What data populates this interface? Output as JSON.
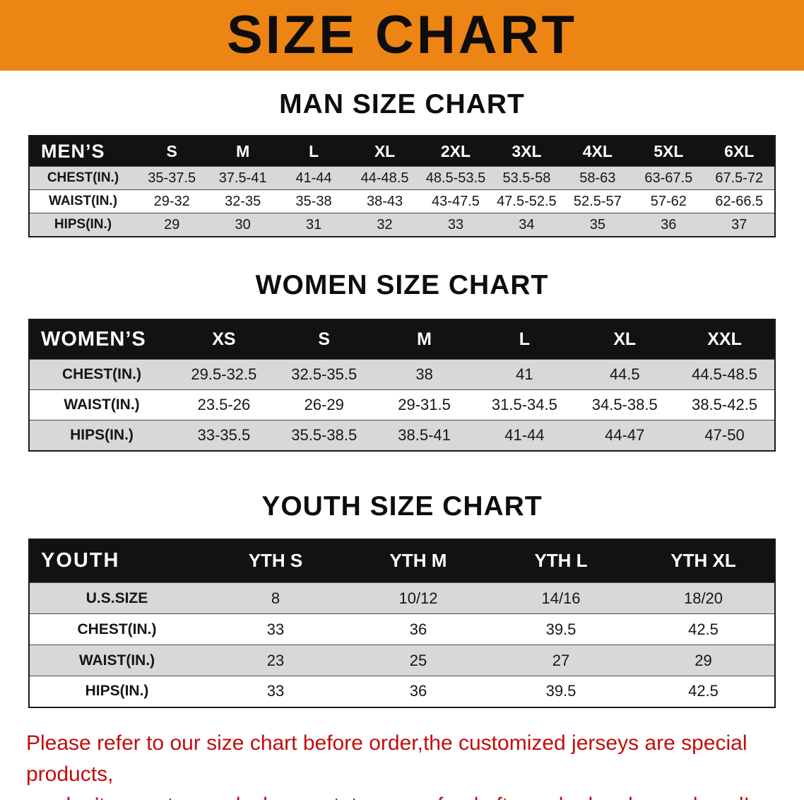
{
  "banner": {
    "title": "SIZE CHART"
  },
  "colors": {
    "banner_bg": "#ED8515",
    "header_bg": "#121212",
    "row_shade": "#D8D8D8",
    "notice_text": "#C20D0D"
  },
  "sections": [
    {
      "id": "men",
      "heading": "MAN SIZE CHART",
      "table": {
        "header_label": "MEN’S",
        "columns": [
          "S",
          "M",
          "L",
          "XL",
          "2XL",
          "3XL",
          "4XL",
          "5XL",
          "6XL"
        ],
        "rows": [
          {
            "label": "CHEST(IN.)",
            "values": [
              "35-37.5",
              "37.5-41",
              "41-44",
              "44-48.5",
              "48.5-53.5",
              "53.5-58",
              "58-63",
              "63-67.5",
              "67.5-72"
            ]
          },
          {
            "label": "WAIST(IN.)",
            "values": [
              "29-32",
              "32-35",
              "35-38",
              "38-43",
              "43-47.5",
              "47.5-52.5",
              "52.5-57",
              "57-62",
              "62-66.5"
            ]
          },
          {
            "label": "HIPS(IN.)",
            "values": [
              "29",
              "30",
              "31",
              "32",
              "33",
              "34",
              "35",
              "36",
              "37"
            ]
          }
        ]
      }
    },
    {
      "id": "women",
      "heading": "WOMEN SIZE CHART",
      "table": {
        "header_label": "WOMEN’S",
        "columns": [
          "XS",
          "S",
          "M",
          "L",
          "XL",
          "XXL"
        ],
        "rows": [
          {
            "label": "CHEST(IN.)",
            "values": [
              "29.5-32.5",
              "32.5-35.5",
              "38",
              "41",
              "44.5",
              "44.5-48.5"
            ]
          },
          {
            "label": "WAIST(IN.)",
            "values": [
              "23.5-26",
              "26-29",
              "29-31.5",
              "31.5-34.5",
              "34.5-38.5",
              "38.5-42.5"
            ]
          },
          {
            "label": "HIPS(IN.)",
            "values": [
              "33-35.5",
              "35.5-38.5",
              "38.5-41",
              "41-44",
              "44-47",
              "47-50"
            ]
          }
        ]
      }
    },
    {
      "id": "youth",
      "heading": "YOUTH SIZE CHART",
      "table": {
        "header_label": "YOUTH",
        "columns": [
          "YTH S",
          "YTH M",
          "YTH L",
          "YTH XL"
        ],
        "rows": [
          {
            "label": "U.S.SIZE",
            "values": [
              "8",
              "10/12",
              "14/16",
              "18/20"
            ]
          },
          {
            "label": "CHEST(IN.)",
            "values": [
              "33",
              "36",
              "39.5",
              "42.5"
            ]
          },
          {
            "label": "WAIST(IN.)",
            "values": [
              "23",
              "25",
              "27",
              "29"
            ]
          },
          {
            "label": "HIPS(IN.)",
            "values": [
              "33",
              "36",
              "39.5",
              "42.5"
            ]
          }
        ]
      }
    }
  ],
  "footer": {
    "lines": [
      "Please refer to our size chart before order,the customized jerseys are special products,",
      "we don’t accept cancel, change, teturn or refund after order has been placed!"
    ]
  }
}
